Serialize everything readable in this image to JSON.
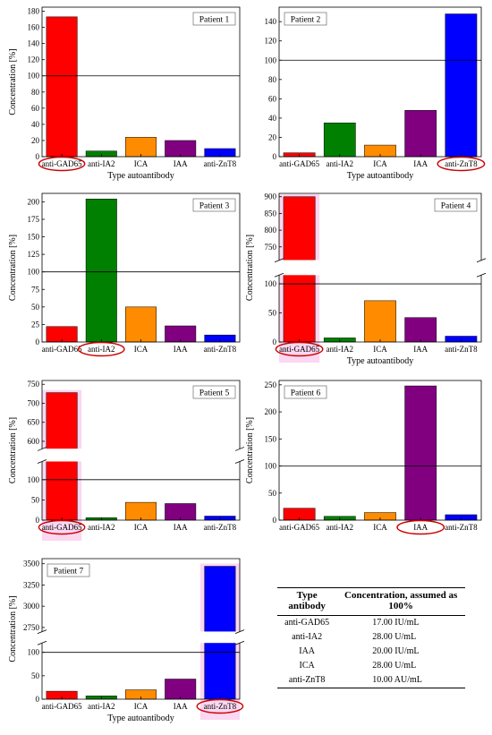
{
  "colors": {
    "anti-GAD65": "#ff0000",
    "anti-IA2": "#008000",
    "ICA": "#ff8c00",
    "IAA": "#800080",
    "anti-ZnT8": "#0000ff",
    "highlight_oval": "#cc0000",
    "highlight_glow": "#f7b6e6"
  },
  "chart_data": [
    {
      "type": "bar",
      "title": "Patient 1",
      "categories": [
        "anti-GAD65",
        "anti-IA2",
        "ICA",
        "IAA",
        "anti-ZnT8"
      ],
      "values": [
        173,
        7,
        24,
        20,
        10
      ],
      "ylabel": "Concentration [%]",
      "xlabel": "Type autoantibody",
      "ylim": [
        0,
        185
      ],
      "yticks": [
        0,
        20,
        40,
        60,
        80,
        100,
        120,
        140,
        160,
        180
      ],
      "reference_line": 100,
      "highlighted": "anti-GAD65",
      "legend": "top-right"
    },
    {
      "type": "bar",
      "title": "Patient 2",
      "categories": [
        "anti-GAD65",
        "anti-IA2",
        "ICA",
        "IAA",
        "anti-ZnT8"
      ],
      "values": [
        4,
        35,
        12,
        48,
        148
      ],
      "ylabel": "",
      "xlabel": "Type autoantibody",
      "ylim": [
        0,
        155
      ],
      "yticks": [
        0,
        20,
        40,
        60,
        80,
        100,
        120,
        140
      ],
      "reference_line": 100,
      "highlighted": "anti-ZnT8",
      "legend": "top-left"
    },
    {
      "type": "bar",
      "title": "Patient 3",
      "categories": [
        "anti-GAD65",
        "anti-IA2",
        "ICA",
        "IAA",
        "anti-ZnT8"
      ],
      "values": [
        22,
        204,
        50,
        23,
        10
      ],
      "ylabel": "Concentration [%]",
      "xlabel": "",
      "ylim": [
        0,
        212
      ],
      "yticks": [
        0,
        25,
        50,
        75,
        100,
        125,
        150,
        175,
        200
      ],
      "reference_line": 100,
      "highlighted": "anti-IA2",
      "legend": "top-right"
    },
    {
      "type": "bar",
      "title": "Patient 4",
      "categories": [
        "anti-GAD65",
        "anti-IA2",
        "ICA",
        "IAA",
        "anti-ZnT8"
      ],
      "values": [
        900,
        7,
        71,
        42,
        10
      ],
      "ylabel": "Concentration [%]",
      "xlabel": "Type autoantibody",
      "broken_axis": {
        "lower": [
          0,
          115
        ],
        "upper": [
          710,
          910
        ],
        "lower_ticks": [
          0,
          50,
          100
        ],
        "upper_ticks": [
          750,
          800,
          850,
          900
        ]
      },
      "reference_line": 100,
      "highlighted": "anti-GAD65",
      "legend": "top-right"
    },
    {
      "type": "bar",
      "title": "Patient 5",
      "categories": [
        "anti-GAD65",
        "anti-IA2",
        "ICA",
        "IAA",
        "anti-ZnT8"
      ],
      "values": [
        728,
        6,
        44,
        41,
        10
      ],
      "ylabel": "Concentration [%]",
      "xlabel": "",
      "broken_axis": {
        "lower": [
          0,
          145
        ],
        "upper": [
          580,
          760
        ],
        "lower_ticks": [
          0,
          50,
          100
        ],
        "upper_ticks": [
          600,
          650,
          700,
          750
        ]
      },
      "reference_line": 100,
      "highlighted": "anti-GAD65",
      "legend": "top-right"
    },
    {
      "type": "bar",
      "title": "Patient 6",
      "categories": [
        "anti-GAD65",
        "anti-IA2",
        "ICA",
        "IAA",
        "anti-ZnT8"
      ],
      "values": [
        22,
        7,
        14,
        248,
        10
      ],
      "ylabel": "Concentration [%]",
      "xlabel": "",
      "ylim": [
        0,
        258
      ],
      "yticks": [
        0,
        50,
        100,
        150,
        200,
        250
      ],
      "reference_line": 100,
      "highlighted": "IAA",
      "legend": "top-left"
    },
    {
      "type": "bar",
      "title": "Patient 7",
      "categories": [
        "anti-GAD65",
        "anti-IA2",
        "ICA",
        "IAA",
        "anti-ZnT8"
      ],
      "values": [
        17,
        7,
        20,
        43,
        3470
      ],
      "ylabel": "Concentration [%]",
      "xlabel": "Type autoantibody",
      "broken_axis": {
        "lower": [
          0,
          120
        ],
        "upper": [
          2700,
          3560
        ],
        "lower_ticks": [
          0,
          50,
          100
        ],
        "upper_ticks": [
          2750,
          3000,
          3250,
          3500
        ]
      },
      "reference_line": 100,
      "highlighted": "anti-ZnT8",
      "legend": "top-left"
    }
  ],
  "reference_table": {
    "headers": [
      "Type antibody",
      "Concentration, assumed as 100%"
    ],
    "rows": [
      [
        "anti-GAD65",
        "17.00 IU/mL"
      ],
      [
        "anti-IA2",
        "28.00 U/mL"
      ],
      [
        "IAA",
        "20.00 IU/mL"
      ],
      [
        "ICA",
        "28.00 U/mL"
      ],
      [
        "anti-ZnT8",
        "10.00 AU/mL"
      ]
    ]
  }
}
